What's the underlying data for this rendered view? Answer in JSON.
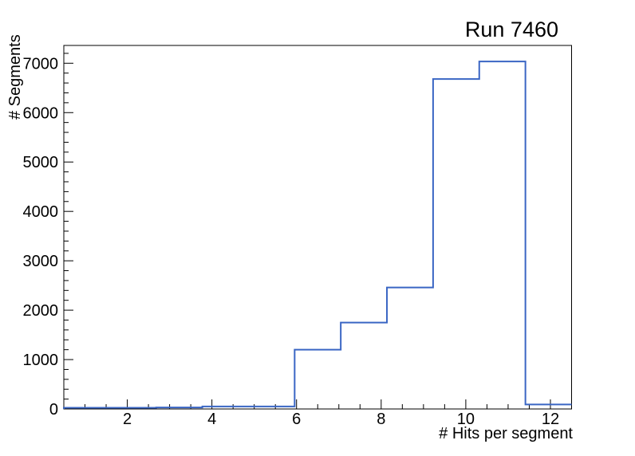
{
  "page": {
    "background": "#ffffff"
  },
  "chart_data": {
    "type": "histogram-step",
    "title": "Run 7460",
    "xlabel": "# Hits per segment",
    "ylabel": "# Segments",
    "xlim": [
      0.5,
      12.5
    ],
    "ylim": [
      0,
      7360
    ],
    "n_bins": 11,
    "bin_edges": [
      0.5,
      1.591,
      2.682,
      3.773,
      4.864,
      5.955,
      7.045,
      8.136,
      9.227,
      10.318,
      11.409,
      12.5
    ],
    "counts": [
      25,
      25,
      30,
      50,
      50,
      1200,
      1750,
      2460,
      6680,
      7035,
      90
    ],
    "x_major_ticks": [
      2,
      4,
      6,
      8,
      10,
      12
    ],
    "x_tick_labels": [
      "2",
      "4",
      "6",
      "8",
      "10",
      "12"
    ],
    "x_minor_tick_step": 0.5,
    "y_major_ticks": [
      0,
      1000,
      2000,
      3000,
      4000,
      5000,
      6000,
      7000
    ],
    "y_tick_labels": [
      "0",
      "1000",
      "2000",
      "3000",
      "4000",
      "5000",
      "6000",
      "7000"
    ],
    "y_minor_tick_step": 200,
    "grid": false,
    "legend": null,
    "line_color": "#3a66c4",
    "axis_color": "#000000",
    "text_color": "#000000"
  }
}
